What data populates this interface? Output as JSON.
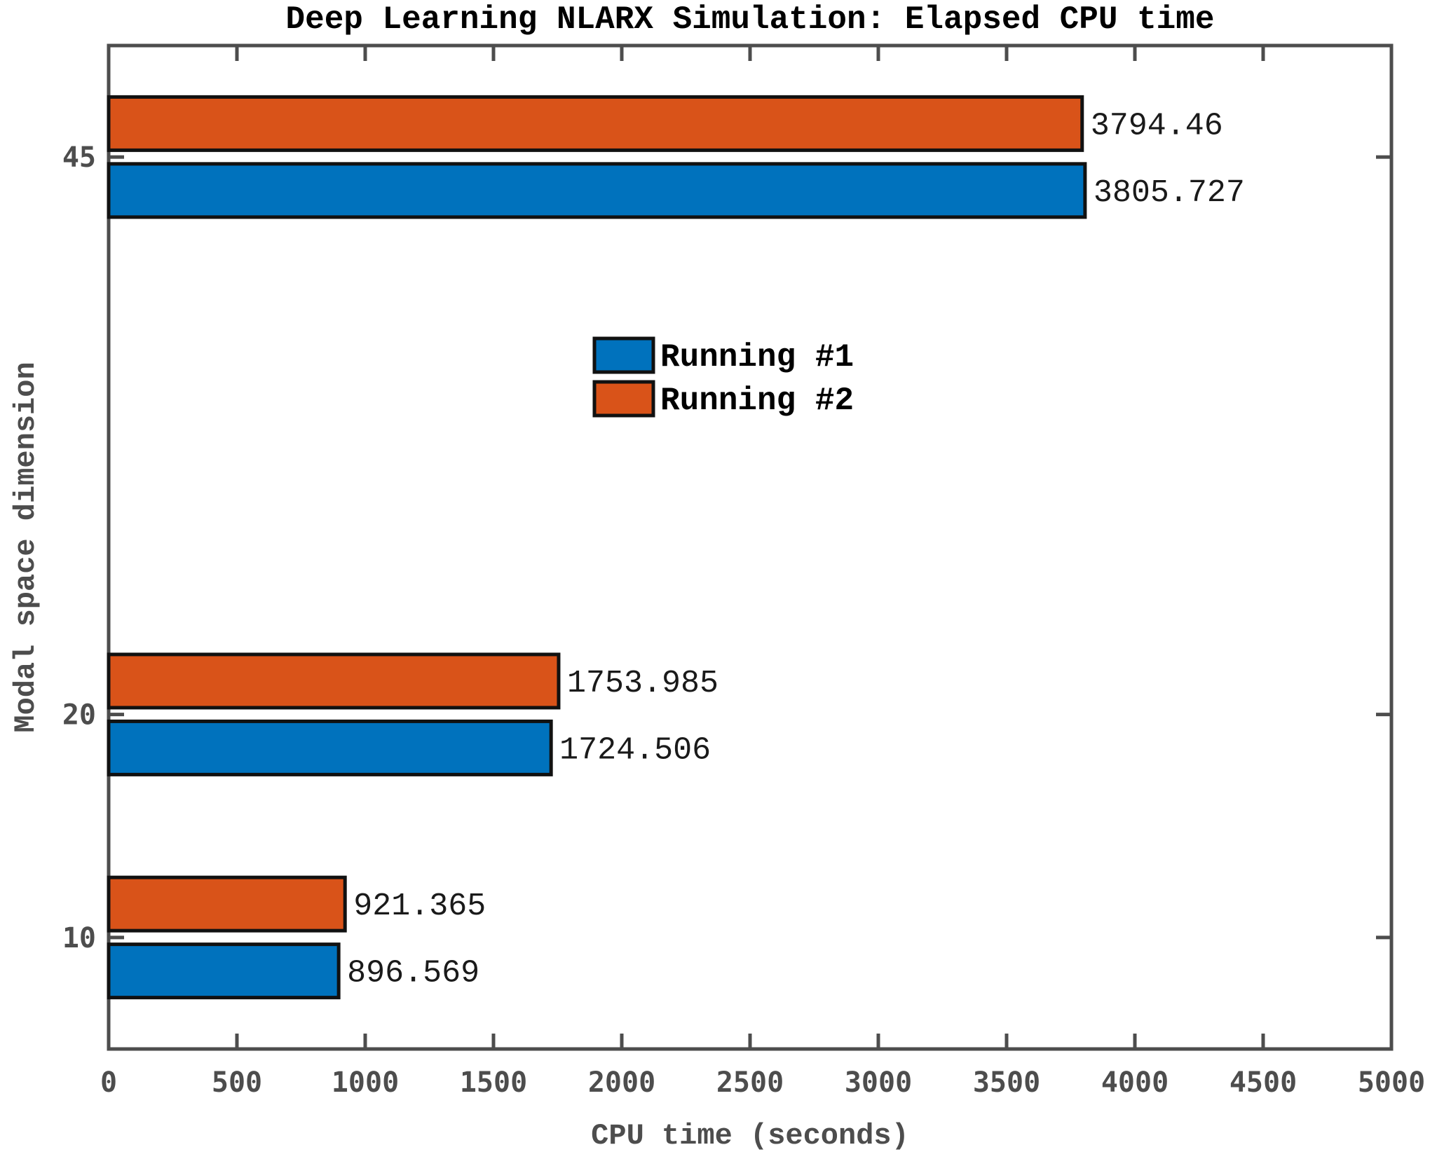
{
  "chart_data": {
    "type": "bar",
    "orientation": "horizontal",
    "title": "Deep Learning NLARX Simulation: Elapsed CPU time",
    "xlabel": "CPU time (seconds)",
    "ylabel": "Modal space dimension",
    "categories": [
      10,
      20,
      45
    ],
    "series": [
      {
        "name": "Running #1",
        "color": "#0072BD",
        "values": [
          896.569,
          1724.506,
          3805.727
        ]
      },
      {
        "name": "Running #2",
        "color": "#D95319",
        "values": [
          921.365,
          1753.985,
          3794.46
        ]
      }
    ],
    "value_labels": [
      [
        "896.569",
        "1724.506",
        "3805.727"
      ],
      [
        "921.365",
        "1753.985",
        "3794.46"
      ]
    ],
    "xlim": [
      0,
      5000
    ],
    "ylim": [
      5,
      50
    ],
    "x_ticks": [
      0,
      500,
      1000,
      1500,
      2000,
      2500,
      3000,
      3500,
      4000,
      4500,
      5000
    ],
    "y_ticks": [
      10,
      20,
      45
    ],
    "grid": false,
    "legend_position": "center",
    "axis_color": "#4d4d4d",
    "bar_edge_color": "#111111",
    "background_color": "#ffffff"
  }
}
